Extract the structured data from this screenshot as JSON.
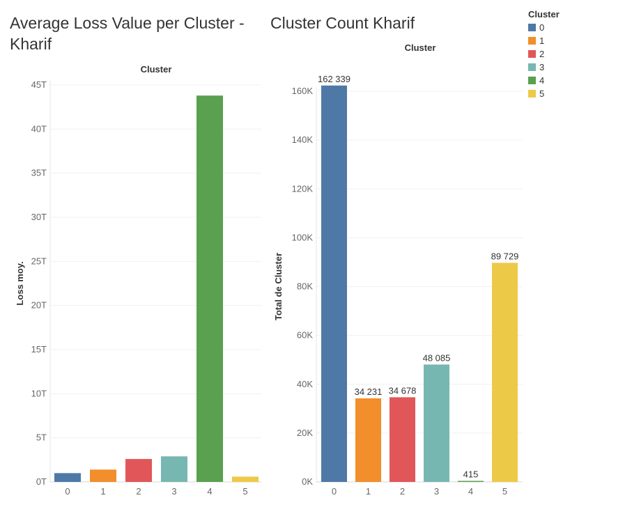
{
  "palette": {
    "0": "#4e79a7",
    "1": "#f28e2b",
    "2": "#e15759",
    "3": "#76b7b2",
    "4": "#59a14f",
    "5": "#edc948"
  },
  "legend": {
    "title": "Cluster",
    "items": [
      "0",
      "1",
      "2",
      "3",
      "4",
      "5"
    ]
  },
  "chart_data": [
    {
      "type": "bar",
      "title": "Average Loss Value per Cluster - Kharif",
      "header": "Cluster",
      "ylabel": "Loss moy.",
      "xlabel": "",
      "categories": [
        "0",
        "1",
        "2",
        "3",
        "4",
        "5"
      ],
      "values": [
        1.0,
        1.4,
        2.6,
        2.9,
        43.8,
        0.6
      ],
      "unit": "T",
      "ylim": [
        0,
        45
      ],
      "yticks": [
        0,
        5,
        10,
        15,
        20,
        25,
        30,
        35,
        40,
        45
      ],
      "ytick_labels": [
        "0T",
        "5T",
        "10T",
        "15T",
        "20T",
        "25T",
        "30T",
        "35T",
        "40T",
        "45T"
      ],
      "grid": true,
      "legend": "top-right"
    },
    {
      "type": "bar",
      "title": "Cluster Count Kharif",
      "header": "Cluster",
      "ylabel": "Total de Cluster",
      "xlabel": "",
      "categories": [
        "0",
        "1",
        "2",
        "3",
        "4",
        "5"
      ],
      "values": [
        162339,
        34231,
        34678,
        48085,
        415,
        89729
      ],
      "data_labels": [
        "162 339",
        "34 231",
        "34 678",
        "48 085",
        "415",
        "89 729"
      ],
      "ylim": [
        0,
        160000
      ],
      "yticks": [
        0,
        20000,
        40000,
        60000,
        80000,
        100000,
        120000,
        140000,
        160000
      ],
      "ytick_labels": [
        "0K",
        "20K",
        "40K",
        "60K",
        "80K",
        "100K",
        "120K",
        "140K",
        "160K"
      ],
      "grid": true,
      "legend": "top-right"
    }
  ]
}
